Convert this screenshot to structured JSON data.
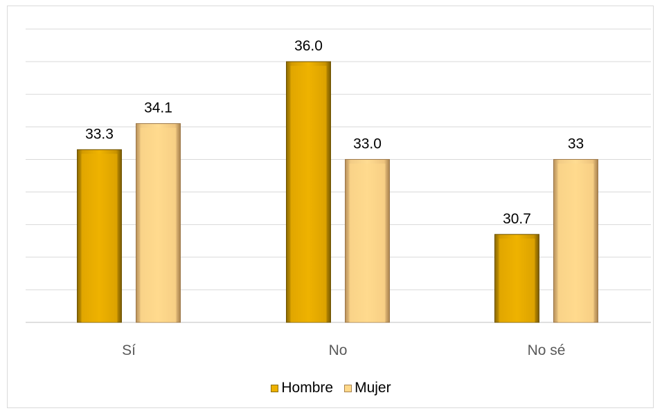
{
  "chart_data": {
    "type": "bar",
    "categories": [
      "Sí",
      "No",
      "No sé"
    ],
    "series": [
      {
        "name": "Hombre",
        "values": [
          33.3,
          36.0,
          30.7
        ],
        "labels": [
          "33.3",
          "36.0",
          "30.7"
        ],
        "color": "#EDB100"
      },
      {
        "name": "Mujer",
        "values": [
          34.1,
          33.0,
          33.0
        ],
        "labels": [
          "34.1",
          "33.0",
          "33"
        ],
        "color": "#FFD98A"
      }
    ],
    "ylim": [
      28,
      37
    ],
    "grid": true,
    "legend_position": "bottom",
    "title": "",
    "xlabel": "",
    "ylabel": ""
  }
}
